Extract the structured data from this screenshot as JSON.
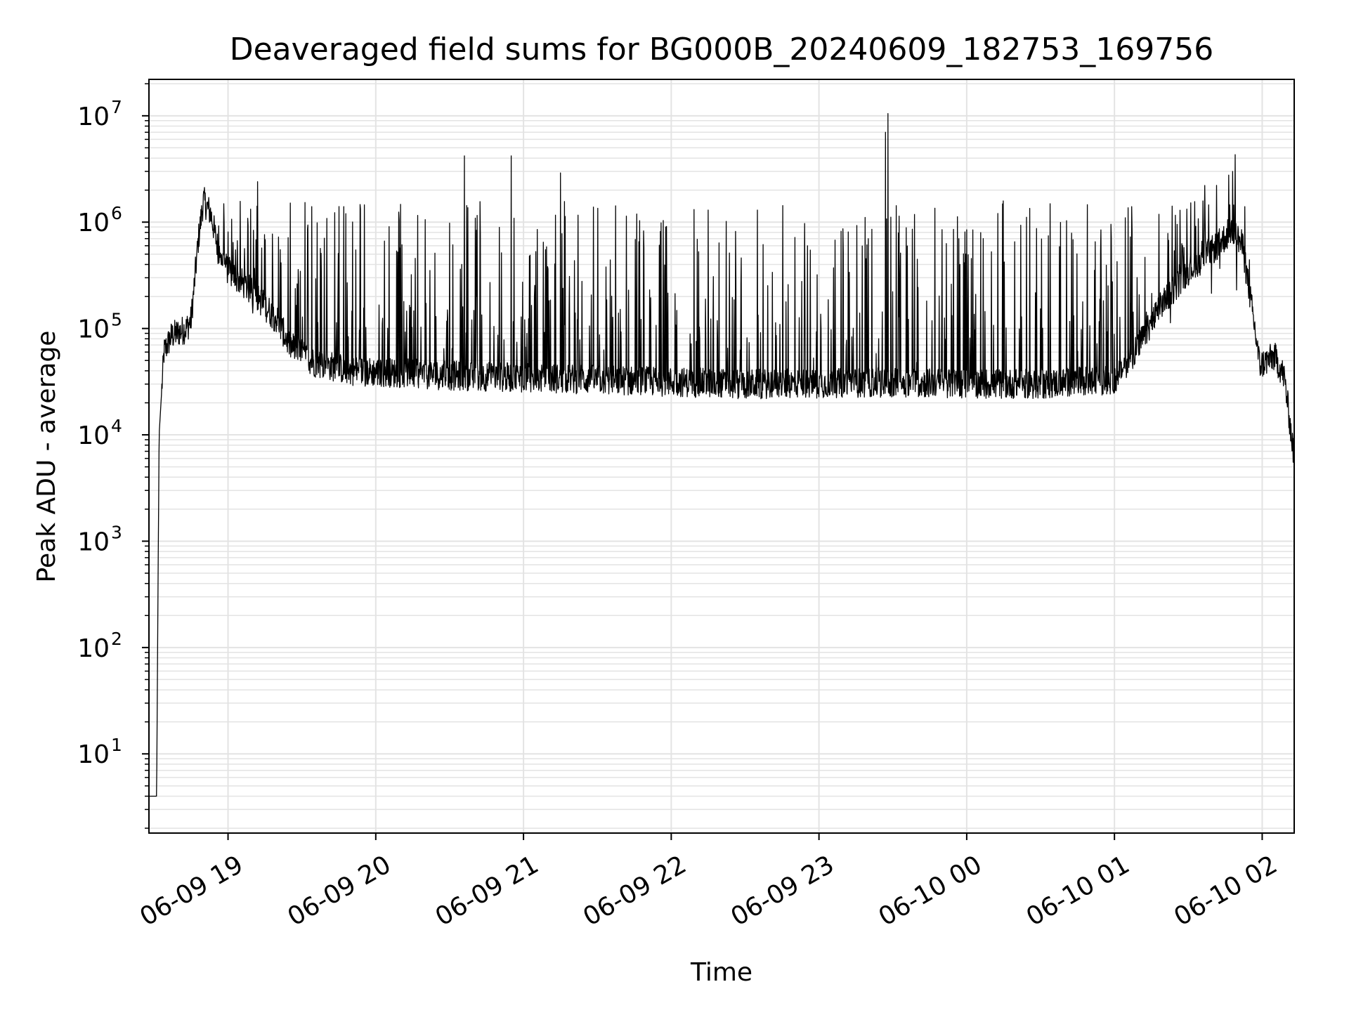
{
  "chart_data": {
    "type": "line",
    "title": "Deaveraged field sums for BG000B_20240609_182753_169756",
    "xlabel": "Time",
    "ylabel": "Peak ADU - average",
    "y_scale": "log",
    "ylim": [
      1.8,
      22000000
    ],
    "xlim": [
      "2024-06-09 18:27:53",
      "2024-06-10 02:13:00"
    ],
    "x_tick_labels": [
      "06-09 19",
      "06-09 20",
      "06-09 21",
      "06-09 22",
      "06-09 23",
      "06-10 00",
      "06-10 01",
      "06-10 02"
    ],
    "x_ticks": [
      "2024-06-09 19:00",
      "2024-06-09 20:00",
      "2024-06-09 21:00",
      "2024-06-09 22:00",
      "2024-06-09 23:00",
      "2024-06-10 00:00",
      "2024-06-10 01:00",
      "2024-06-10 02:00"
    ],
    "y_ticks": [
      {
        "value": 10,
        "base": "10",
        "exp": "1"
      },
      {
        "value": 100,
        "base": "10",
        "exp": "2"
      },
      {
        "value": 1000,
        "base": "10",
        "exp": "3"
      },
      {
        "value": 10000,
        "base": "10",
        "exp": "4"
      },
      {
        "value": 100000,
        "base": "10",
        "exp": "5"
      },
      {
        "value": 1000000,
        "base": "10",
        "exp": "6"
      },
      {
        "value": 10000000,
        "base": "10",
        "exp": "7"
      }
    ],
    "grid": true,
    "line_color": "#000000",
    "grid_color": "#e3e3e3",
    "series": [
      {
        "baseline": [
          {
            "t": "2024-06-09 18:27:53",
            "v": 4
          },
          {
            "t": "2024-06-09 18:30:00",
            "v": 4
          },
          {
            "t": "2024-06-09 18:31:00",
            "v": 4
          },
          {
            "t": "2024-06-09 18:32:00",
            "v": 10000
          },
          {
            "t": "2024-06-09 18:34:00",
            "v": 60000
          },
          {
            "t": "2024-06-09 18:37:00",
            "v": 85000
          },
          {
            "t": "2024-06-09 18:43:00",
            "v": 100000
          },
          {
            "t": "2024-06-09 18:45:00",
            "v": 120000
          },
          {
            "t": "2024-06-09 18:48:00",
            "v": 700000
          },
          {
            "t": "2024-06-09 18:50:00",
            "v": 1600000
          },
          {
            "t": "2024-06-09 18:53:00",
            "v": 1200000
          },
          {
            "t": "2024-06-09 18:56:00",
            "v": 550000
          },
          {
            "t": "2024-06-09 19:00:00",
            "v": 350000
          },
          {
            "t": "2024-06-09 19:10:00",
            "v": 220000
          },
          {
            "t": "2024-06-09 19:20:00",
            "v": 120000
          },
          {
            "t": "2024-06-09 19:25:00",
            "v": 70000
          },
          {
            "t": "2024-06-09 19:35:00",
            "v": 48000
          },
          {
            "t": "2024-06-09 19:50:00",
            "v": 40000
          },
          {
            "t": "2024-06-09 20:30:00",
            "v": 36000
          },
          {
            "t": "2024-06-09 21:30:00",
            "v": 33000
          },
          {
            "t": "2024-06-09 22:30:00",
            "v": 30000
          },
          {
            "t": "2024-06-09 23:30:00",
            "v": 31000
          },
          {
            "t": "2024-06-10 00:30:00",
            "v": 30000
          },
          {
            "t": "2024-06-10 01:00:00",
            "v": 33000
          },
          {
            "t": "2024-06-10 01:10:00",
            "v": 70000
          },
          {
            "t": "2024-06-10 01:20:00",
            "v": 180000
          },
          {
            "t": "2024-06-10 01:30:00",
            "v": 350000
          },
          {
            "t": "2024-06-10 01:40:00",
            "v": 550000
          },
          {
            "t": "2024-06-10 01:48:00",
            "v": 850000
          },
          {
            "t": "2024-06-10 01:52:00",
            "v": 600000
          },
          {
            "t": "2024-06-10 01:57:00",
            "v": 100000
          },
          {
            "t": "2024-06-10 01:59:00",
            "v": 45000
          },
          {
            "t": "2024-06-10 02:05:00",
            "v": 55000
          },
          {
            "t": "2024-06-10 02:09:00",
            "v": 35000
          },
          {
            "t": "2024-06-10 02:13:00",
            "v": 6000
          }
        ],
        "spikes": [
          {
            "t": "2024-06-09 19:34:00",
            "v": 1400000
          },
          {
            "t": "2024-06-09 19:47:00",
            "v": 1400000
          },
          {
            "t": "2024-06-09 20:36:00",
            "v": 4200000
          },
          {
            "t": "2024-06-09 20:55:00",
            "v": 4200000
          },
          {
            "t": "2024-06-09 21:15:00",
            "v": 2900000
          },
          {
            "t": "2024-06-09 22:15:00",
            "v": 1300000
          },
          {
            "t": "2024-06-09 22:35:00",
            "v": 1300000
          },
          {
            "t": "2024-06-09 23:28:00",
            "v": 10500000
          },
          {
            "t": "2024-06-09 23:27:00",
            "v": 7000000
          },
          {
            "t": "2024-06-10 01:07:00",
            "v": 1400000
          },
          {
            "t": "2024-06-10 01:48:00",
            "v": 3000000
          },
          {
            "t": "2024-06-09 19:12:00",
            "v": 2400000
          }
        ]
      }
    ]
  }
}
